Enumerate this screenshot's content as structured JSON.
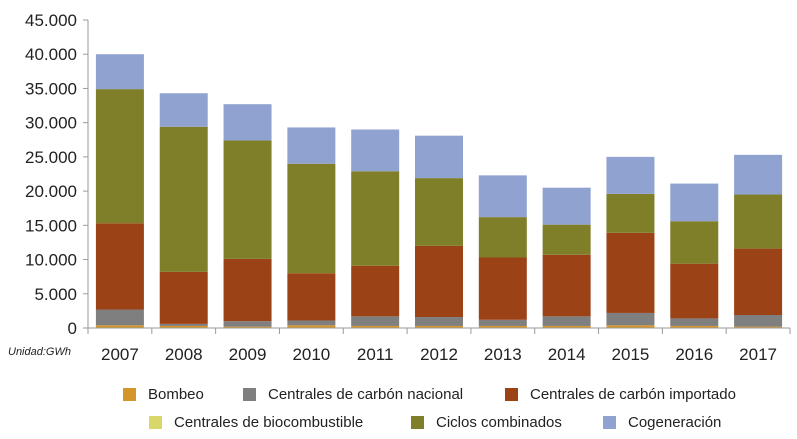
{
  "chart_data": {
    "type": "bar",
    "stacked": true,
    "categories": [
      "2007",
      "2008",
      "2009",
      "2010",
      "2011",
      "2012",
      "2013",
      "2014",
      "2015",
      "2016",
      "2017"
    ],
    "y_tick_labels": [
      "0",
      "5.000",
      "10.000",
      "15.000",
      "20.000",
      "25.000",
      "30.000",
      "35.000",
      "40.000",
      "45.000"
    ],
    "ylim": [
      0,
      45000
    ],
    "unit_label": "Unidad:GWh",
    "series": [
      {
        "name": "Bombeo",
        "color": "#D4962A",
        "values": [
          400,
          300,
          200,
          400,
          300,
          300,
          300,
          300,
          400,
          300,
          200
        ]
      },
      {
        "name": "Centrales de carbón nacional",
        "color": "#7F7F7F",
        "values": [
          2300,
          300,
          800,
          700,
          1400,
          1300,
          900,
          1400,
          1800,
          1100,
          1700
        ]
      },
      {
        "name": "Centrales de carbón importado",
        "color": "#9C4217",
        "values": [
          12600,
          7600,
          9100,
          6900,
          7400,
          10400,
          9100,
          9000,
          11700,
          8000,
          9700
        ]
      },
      {
        "name": "Centrales de biocombustible",
        "color": "#D9D76A",
        "values": [
          0,
          0,
          0,
          0,
          0,
          0,
          0,
          0,
          0,
          0,
          0
        ]
      },
      {
        "name": "Ciclos combinados",
        "color": "#7F7F2A",
        "values": [
          19600,
          21200,
          17300,
          16000,
          13800,
          9900,
          5900,
          4400,
          5700,
          6200,
          7900
        ]
      },
      {
        "name": "Cogeneración",
        "color": "#90A2D0",
        "values": [
          5100,
          4900,
          5300,
          5300,
          6100,
          6200,
          6100,
          5400,
          5400,
          5500,
          5800
        ]
      }
    ],
    "title": "",
    "xlabel": "",
    "ylabel": ""
  }
}
